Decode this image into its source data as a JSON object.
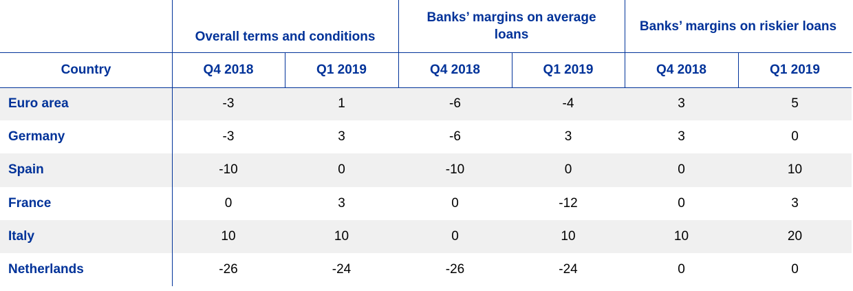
{
  "table": {
    "group_headers": [
      "Overall terms and conditions",
      "Banks’ margins on average loans",
      "Banks’ margins on riskier loans"
    ],
    "header": [
      "Country",
      "Q4 2018",
      "Q1 2019",
      "Q4 2018",
      "Q1 2019",
      "Q4 2018",
      "Q1 2019"
    ],
    "rows": [
      [
        "Euro area",
        -3,
        1,
        -6,
        -4,
        3,
        5
      ],
      [
        "Germany",
        -3,
        3,
        -6,
        3,
        3,
        0
      ],
      [
        "Spain",
        -10,
        0,
        -10,
        0,
        0,
        10
      ],
      [
        "France",
        0,
        3,
        0,
        -12,
        0,
        3
      ],
      [
        "Italy",
        10,
        10,
        0,
        10,
        10,
        20
      ],
      [
        "Netherlands",
        -26,
        -24,
        -26,
        -24,
        0,
        0
      ]
    ]
  }
}
